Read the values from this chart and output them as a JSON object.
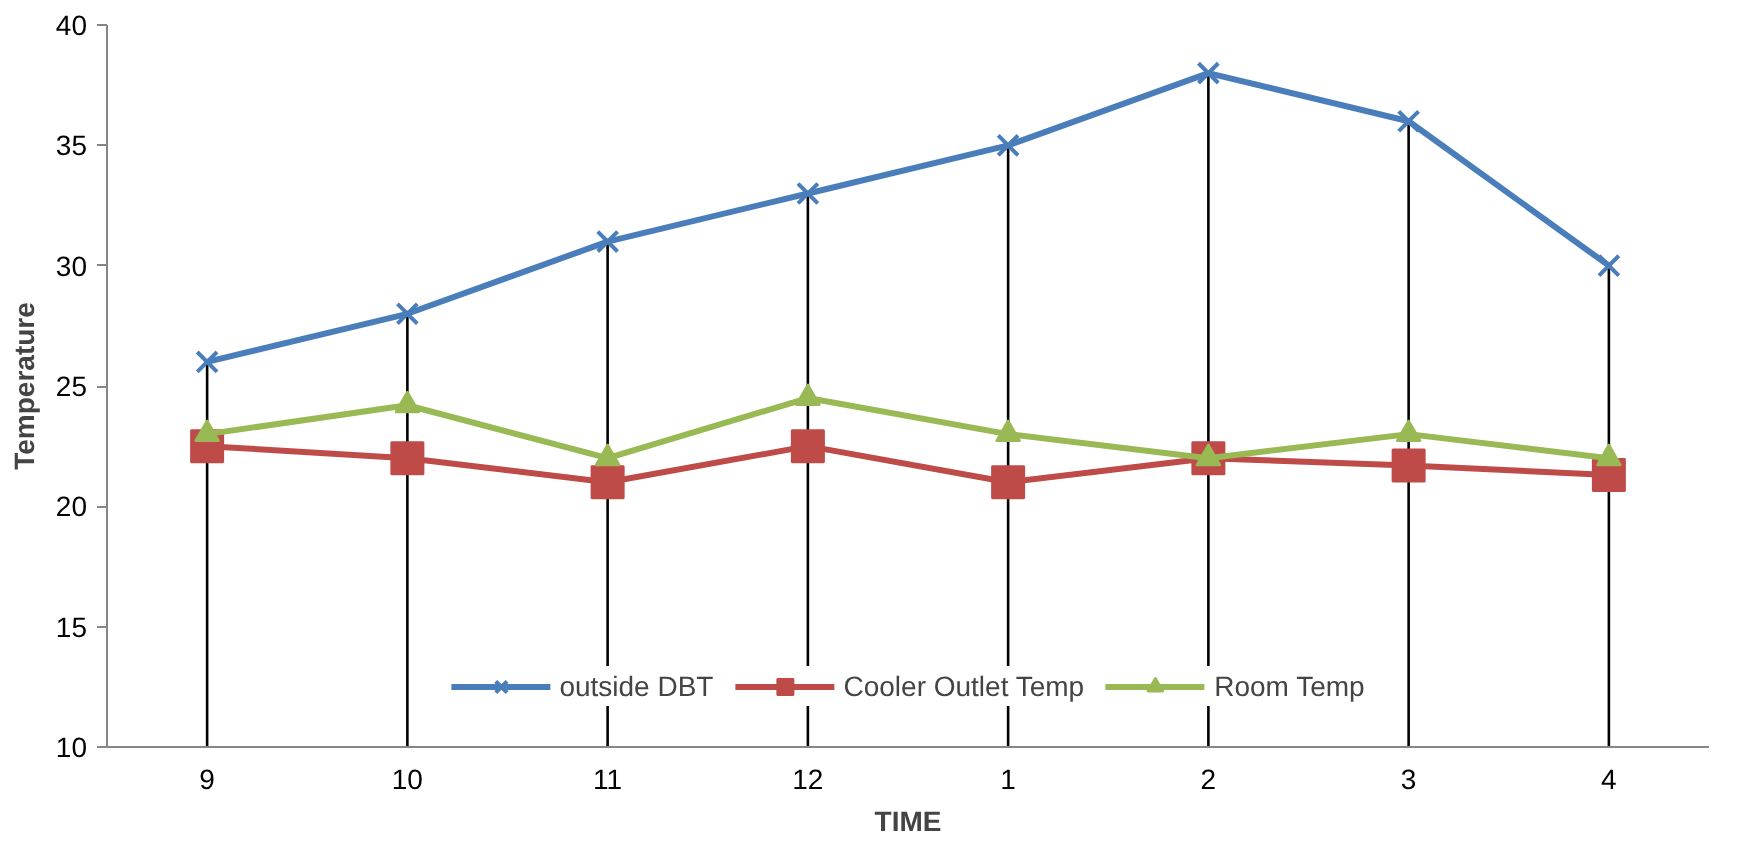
{
  "chart_data": {
    "type": "line",
    "xlabel": "TIME",
    "ylabel": "Temperature",
    "categories": [
      "9",
      "10",
      "11",
      "12",
      "1",
      "2",
      "3",
      "4"
    ],
    "series": [
      {
        "name": "outside DBT",
        "color": "#4a7ebb",
        "marker": "cross",
        "values": [
          26,
          28,
          31,
          33,
          35,
          38,
          36,
          30
        ]
      },
      {
        "name": "Cooler Outlet Temp",
        "color": "#be4b48",
        "marker": "square",
        "values": [
          22.5,
          22,
          21,
          22.5,
          21,
          22,
          21.7,
          21.3
        ]
      },
      {
        "name": "Room Temp",
        "color": "#98b954",
        "marker": "triangle",
        "values": [
          23,
          24.2,
          22,
          24.5,
          23,
          22,
          23,
          22
        ]
      }
    ],
    "ref_lines": [
      {
        "axis": "x",
        "value": "9",
        "color": "#000000"
      },
      {
        "axis": "x",
        "value": "10",
        "color": "#000000"
      },
      {
        "axis": "x",
        "value": "11",
        "color": "#000000"
      },
      {
        "axis": "x",
        "value": "12",
        "color": "#000000"
      },
      {
        "axis": "x",
        "value": "1",
        "color": "#000000"
      },
      {
        "axis": "x",
        "value": "2",
        "color": "#000000"
      },
      {
        "axis": "x",
        "value": "3",
        "color": "#000000"
      },
      {
        "axis": "x",
        "value": "4",
        "color": "#000000"
      }
    ],
    "ylim": [
      10,
      40
    ],
    "yticks": [
      10,
      15,
      20,
      25,
      30,
      35,
      40
    ],
    "grid": false,
    "legend": "bottom"
  }
}
